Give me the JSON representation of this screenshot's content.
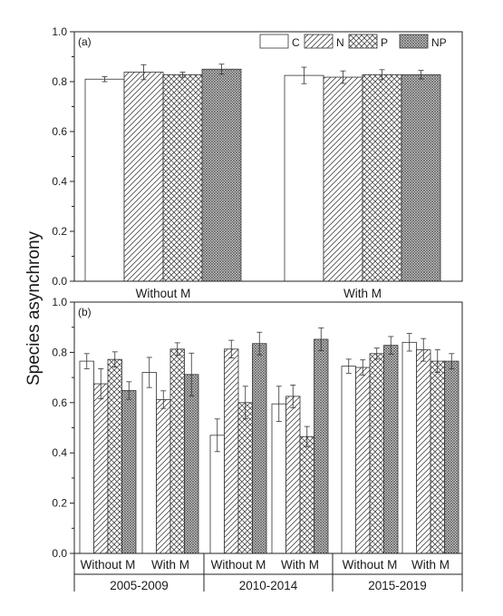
{
  "ylabel": "Species asynchrony",
  "legend": {
    "C": "C",
    "N": "N",
    "P": "P",
    "NP": "NP"
  },
  "chart_data": [
    {
      "type": "bar",
      "panel": "(a)",
      "ylabel": "Species asynchrony",
      "ylim": [
        0.0,
        1.0
      ],
      "yticks": [
        "0.0",
        "0.2",
        "0.4",
        "0.6",
        "0.8",
        "1.0"
      ],
      "categories": [
        "Without M",
        "With M"
      ],
      "series": [
        {
          "name": "C",
          "pattern": "open",
          "values": [
            0.81,
            0.825
          ],
          "errors": [
            0.01,
            0.033
          ]
        },
        {
          "name": "N",
          "pattern": "diagonal",
          "values": [
            0.838,
            0.818
          ],
          "errors": [
            0.03,
            0.025
          ]
        },
        {
          "name": "P",
          "pattern": "crosshatch",
          "values": [
            0.828,
            0.828
          ],
          "errors": [
            0.01,
            0.02
          ]
        },
        {
          "name": "NP",
          "pattern": "dense",
          "values": [
            0.85,
            0.828
          ],
          "errors": [
            0.02,
            0.017
          ]
        }
      ],
      "legend_position": "top-right"
    },
    {
      "type": "bar",
      "panel": "(b)",
      "ylabel": "Species asynchrony",
      "ylim": [
        0.0,
        1.0
      ],
      "yticks": [
        "0.0",
        "0.2",
        "0.4",
        "0.6",
        "0.8",
        "1.0"
      ],
      "periods": [
        "2005-2009",
        "2010-2014",
        "2015-2019"
      ],
      "subcategories": [
        "Without M",
        "With M"
      ],
      "categories": [
        "Without M",
        "With M",
        "Without M",
        "With M",
        "Without M",
        "With M"
      ],
      "series": [
        {
          "name": "C",
          "pattern": "open",
          "values": [
            0.765,
            0.72,
            0.47,
            0.595,
            0.745,
            0.84
          ],
          "errors": [
            0.03,
            0.06,
            0.065,
            0.07,
            0.028,
            0.035
          ]
        },
        {
          "name": "N",
          "pattern": "diagonal",
          "values": [
            0.675,
            0.612,
            0.813,
            0.625,
            0.74,
            0.81
          ],
          "errors": [
            0.06,
            0.035,
            0.035,
            0.045,
            0.03,
            0.045
          ]
        },
        {
          "name": "P",
          "pattern": "crosshatch",
          "values": [
            0.772,
            0.813,
            0.6,
            0.465,
            0.795,
            0.765
          ],
          "errors": [
            0.03,
            0.025,
            0.065,
            0.04,
            0.022,
            0.045
          ]
        },
        {
          "name": "NP",
          "pattern": "dense",
          "values": [
            0.648,
            0.712,
            0.835,
            0.852,
            0.828,
            0.765
          ],
          "errors": [
            0.035,
            0.085,
            0.045,
            0.045,
            0.035,
            0.03
          ]
        }
      ]
    }
  ]
}
